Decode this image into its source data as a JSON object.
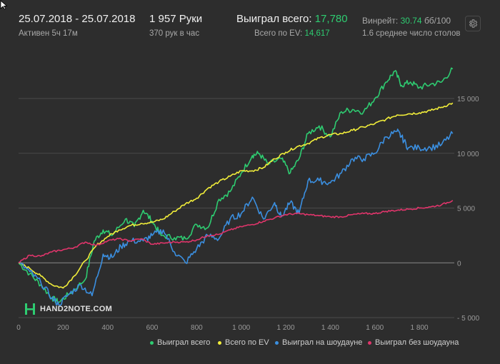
{
  "header": {
    "date_range": "25.07.2018 - 25.07.2018",
    "active": "Активен 5ч 17м",
    "hands": "1 957 Руки",
    "hands_per_hour": "370 рук в час",
    "won_total_label": "Выиграл всего:",
    "won_total_value": "17,780",
    "ev_label": "Всего по EV:",
    "ev_value": "14,617",
    "winrate_label": "Винрейт:",
    "winrate_value": "30.74",
    "winrate_unit": "бб/100",
    "avg_tables": "1.6 среднее число столов"
  },
  "logo_text": "HAND2NOTE.COM",
  "icons": {
    "settings": "gear-icon",
    "cursor": "cursor-icon",
    "logo": "hand2note-logo-icon"
  },
  "colors": {
    "background": "#2d2d2d",
    "won_total": "#2ecc71",
    "ev": "#f2ee3a",
    "showdown": "#3b8fe0",
    "non_showdown": "#e0356b",
    "grid": "#4a4a4a",
    "zero_line": "#8a8a8a"
  },
  "chart_data": {
    "type": "line",
    "xlabel": "",
    "ylabel": "",
    "xlim": [
      0,
      1957
    ],
    "ylim": [
      -5000,
      18000
    ],
    "x_ticks": [
      0,
      200,
      400,
      600,
      800,
      1000,
      1200,
      1400,
      1600,
      1800
    ],
    "x_tick_labels": [
      "0",
      "200",
      "400",
      "600",
      "800",
      "1 000",
      "1 200",
      "1 400",
      "1 600",
      "1 800"
    ],
    "y_ticks": [
      -5000,
      0,
      5000,
      10000,
      15000
    ],
    "y_tick_labels": [
      "- 5 000",
      "0",
      "5 000",
      "10 000",
      "15 000"
    ],
    "grid": true,
    "legend_position": "bottom",
    "series": [
      {
        "name": "Выиграл всего",
        "color": "#2ecc71",
        "x": [
          0,
          50,
          100,
          150,
          180,
          230,
          300,
          340,
          380,
          420,
          480,
          520,
          560,
          600,
          640,
          700,
          750,
          800,
          850,
          900,
          950,
          1000,
          1050,
          1080,
          1120,
          1180,
          1220,
          1260,
          1300,
          1350,
          1400,
          1450,
          1500,
          1550,
          1600,
          1650,
          1690,
          1720,
          1760,
          1800,
          1850,
          1900,
          1950
        ],
        "y": [
          0,
          -1000,
          -2000,
          -3200,
          -3600,
          -2800,
          -1500,
          2000,
          3000,
          2500,
          4000,
          3300,
          4800,
          3800,
          2500,
          2300,
          2200,
          3500,
          3200,
          5800,
          6500,
          8200,
          9800,
          10000,
          9000,
          9500,
          8200,
          9500,
          11800,
          12500,
          11500,
          13800,
          14000,
          13800,
          15000,
          16500,
          17500,
          16200,
          16500,
          16000,
          16300,
          16500,
          17700
        ]
      },
      {
        "name": "Всего по EV",
        "color": "#f2ee3a",
        "x": [
          0,
          50,
          100,
          150,
          200,
          250,
          300,
          350,
          400,
          450,
          500,
          550,
          600,
          650,
          700,
          750,
          800,
          850,
          900,
          950,
          1000,
          1050,
          1100,
          1150,
          1200,
          1250,
          1300,
          1350,
          1400,
          1450,
          1500,
          1550,
          1600,
          1650,
          1700,
          1750,
          1800,
          1850,
          1900,
          1950
        ],
        "y": [
          0,
          -500,
          -1200,
          -2000,
          -2300,
          -1200,
          200,
          1600,
          2400,
          3000,
          3400,
          3600,
          3700,
          4000,
          4700,
          5400,
          5900,
          6800,
          7400,
          7900,
          8400,
          8400,
          8700,
          9500,
          10100,
          10600,
          10900,
          11400,
          11700,
          11800,
          12100,
          12400,
          12700,
          13100,
          13500,
          13600,
          13700,
          13900,
          14200,
          14600
        ]
      },
      {
        "name": "Выиграл на шоудауне",
        "color": "#3b8fe0",
        "x": [
          0,
          50,
          100,
          150,
          180,
          230,
          280,
          330,
          380,
          420,
          460,
          500,
          560,
          600,
          650,
          700,
          750,
          800,
          850,
          900,
          950,
          1000,
          1050,
          1100,
          1150,
          1180,
          1220,
          1260,
          1300,
          1350,
          1400,
          1450,
          1500,
          1550,
          1600,
          1650,
          1700,
          1720,
          1750,
          1800,
          1850,
          1900,
          1950
        ],
        "y": [
          0,
          -800,
          -1800,
          -3200,
          -3800,
          -2800,
          -2000,
          -3000,
          800,
          500,
          1500,
          2000,
          2000,
          2500,
          3000,
          1000,
          0,
          1300,
          2500,
          2200,
          4000,
          4500,
          6000,
          4000,
          5500,
          4200,
          5500,
          4500,
          7500,
          7500,
          7300,
          8200,
          9500,
          9500,
          10000,
          11500,
          12000,
          11500,
          10500,
          10500,
          10500,
          10800,
          11800
        ]
      },
      {
        "name": "Выиграл без шоудауна",
        "color": "#e0356b",
        "x": [
          0,
          50,
          100,
          150,
          200,
          250,
          300,
          350,
          400,
          450,
          500,
          550,
          600,
          650,
          700,
          750,
          800,
          850,
          900,
          950,
          1000,
          1050,
          1100,
          1150,
          1200,
          1250,
          1300,
          1350,
          1400,
          1450,
          1500,
          1550,
          1600,
          1650,
          1700,
          1750,
          1800,
          1850,
          1900,
          1950
        ],
        "y": [
          0,
          700,
          600,
          1000,
          1200,
          1400,
          1900,
          1600,
          2000,
          2200,
          2000,
          2200,
          1700,
          1800,
          1900,
          1900,
          2100,
          2500,
          2600,
          3000,
          3300,
          3500,
          3800,
          4100,
          4400,
          4500,
          4400,
          4300,
          4200,
          4200,
          4400,
          4500,
          4500,
          4700,
          4800,
          4900,
          5000,
          5100,
          5300,
          5700
        ]
      }
    ]
  }
}
